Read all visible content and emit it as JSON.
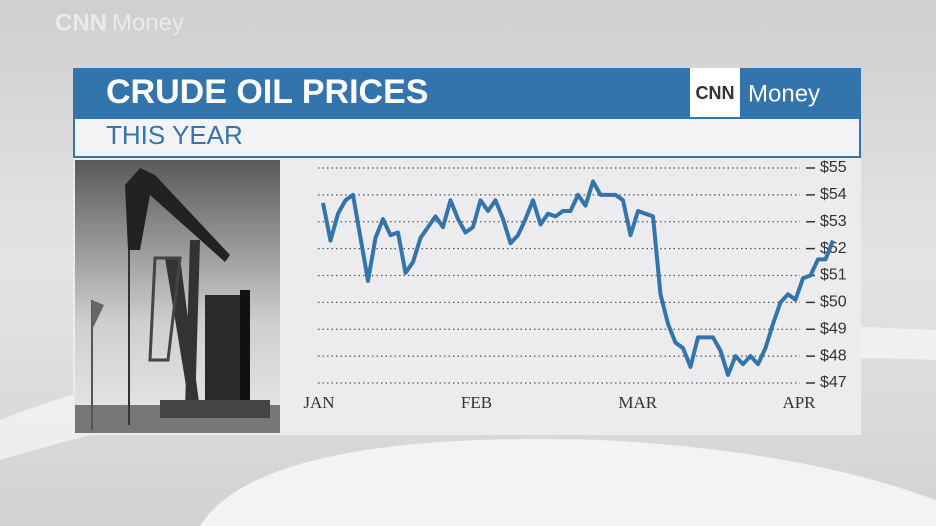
{
  "watermark": {
    "brand": "CNN",
    "product": "Money"
  },
  "logo": {
    "brand": "CNN",
    "product": "Money"
  },
  "chart_data": {
    "type": "line",
    "title": "CRUDE OIL PRICES",
    "subtitle": "THIS YEAR",
    "x": [
      0,
      1,
      2,
      3,
      4,
      5,
      6,
      7,
      8,
      9,
      10,
      11,
      12,
      13,
      14,
      15,
      16,
      17,
      18,
      19,
      20,
      21,
      22,
      23,
      24,
      25,
      26,
      27,
      28,
      29,
      30,
      31,
      32,
      33,
      34,
      35,
      36,
      37,
      38,
      39,
      40,
      41,
      42,
      43,
      44,
      45,
      46,
      47,
      48,
      49,
      50,
      51,
      52,
      53,
      54,
      55,
      56,
      57,
      58,
      59,
      60,
      61,
      62,
      63,
      64,
      65,
      66,
      67,
      68
    ],
    "series": [
      {
        "name": "Crude oil price",
        "color": "#3474ad",
        "values": [
          53.7,
          52.3,
          53.3,
          53.8,
          54.0,
          52.4,
          50.8,
          52.4,
          53.1,
          52.5,
          52.6,
          51.1,
          51.5,
          52.4,
          52.8,
          53.2,
          52.8,
          53.8,
          53.1,
          52.6,
          52.8,
          53.8,
          53.4,
          53.8,
          53.1,
          52.2,
          52.5,
          53.1,
          53.8,
          52.9,
          53.3,
          53.2,
          53.4,
          53.4,
          54.0,
          53.6,
          54.5,
          54.0,
          54.0,
          54.0,
          53.8,
          52.5,
          53.4,
          53.3,
          53.2,
          50.3,
          49.2,
          48.5,
          48.3,
          47.6,
          48.7,
          48.7,
          48.7,
          48.2,
          47.3,
          48.0,
          47.7,
          48.0,
          47.7,
          48.3,
          49.2,
          50.0,
          50.3,
          50.1,
          50.9,
          51.0,
          51.6,
          51.6,
          52.3
        ]
      }
    ],
    "xlim": [
      0,
      68
    ],
    "xticks": [
      {
        "value": 0,
        "label": "JAN"
      },
      {
        "value": 21,
        "label": "FEB"
      },
      {
        "value": 42.5,
        "label": "MAR"
      },
      {
        "value": 64,
        "label": "APR"
      }
    ],
    "ylim": [
      47,
      55
    ],
    "yticks": [
      {
        "value": 47,
        "label": "$47"
      },
      {
        "value": 48,
        "label": "$48"
      },
      {
        "value": 49,
        "label": "$49"
      },
      {
        "value": 50,
        "label": "$50"
      },
      {
        "value": 51,
        "label": "$51"
      },
      {
        "value": 52,
        "label": "$52"
      },
      {
        "value": 53,
        "label": "$53"
      },
      {
        "value": 54,
        "label": "$54"
      },
      {
        "value": 55,
        "label": "$55"
      }
    ],
    "grid": true
  }
}
